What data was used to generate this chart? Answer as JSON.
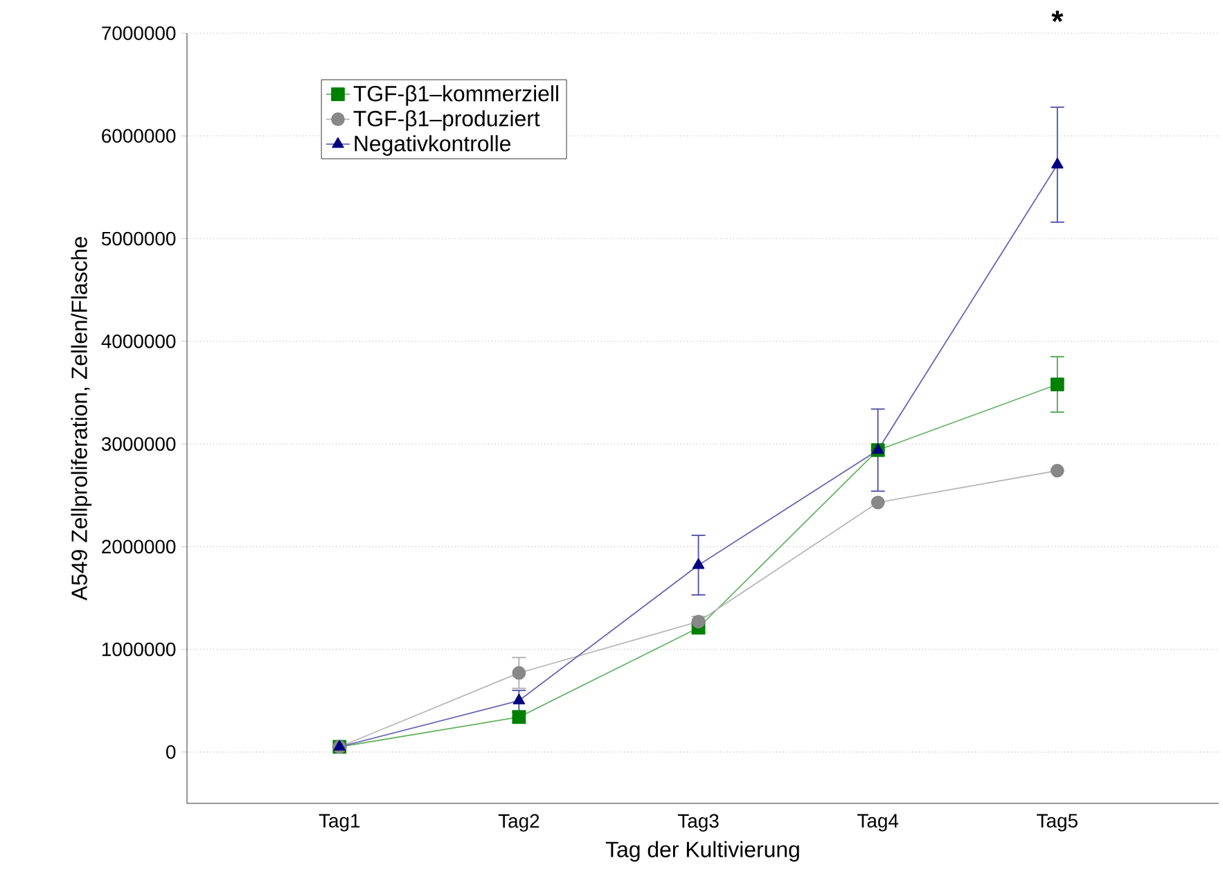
{
  "chart_data": {
    "type": "line",
    "xlabel": "Tag der Kultivierung",
    "ylabel": "A549 Zellproliferation, Zellen/Flasche",
    "categories": [
      "Tag1",
      "Tag2",
      "Tag3",
      "Tag4",
      "Tag5"
    ],
    "series": [
      {
        "name": "TGF-β1–kommerziell",
        "color": "#008000",
        "marker": "square",
        "values": [
          50000,
          340000,
          1210000,
          2940000,
          3580000
        ],
        "errors": [
          null,
          50000,
          50000,
          null,
          270000
        ]
      },
      {
        "name": "TGF-β1–produziert",
        "color": "#888888",
        "marker": "circle",
        "values": [
          50000,
          770000,
          1270000,
          2430000,
          2740000
        ],
        "errors": [
          null,
          150000,
          50000,
          null,
          null
        ]
      },
      {
        "name": "Negativkontrolle",
        "color": "#000080",
        "marker": "triangle",
        "values": [
          50000,
          500000,
          1820000,
          2940000,
          5720000
        ],
        "errors": [
          null,
          100000,
          290000,
          400000,
          560000
        ]
      }
    ],
    "ylim": [
      -500000,
      7000000
    ],
    "yticks": [
      0,
      1000000,
      2000000,
      3000000,
      4000000,
      5000000,
      6000000,
      7000000
    ],
    "grid": "y",
    "legend": "top left",
    "line_style": "solid",
    "annotations": [
      "*"
    ]
  }
}
